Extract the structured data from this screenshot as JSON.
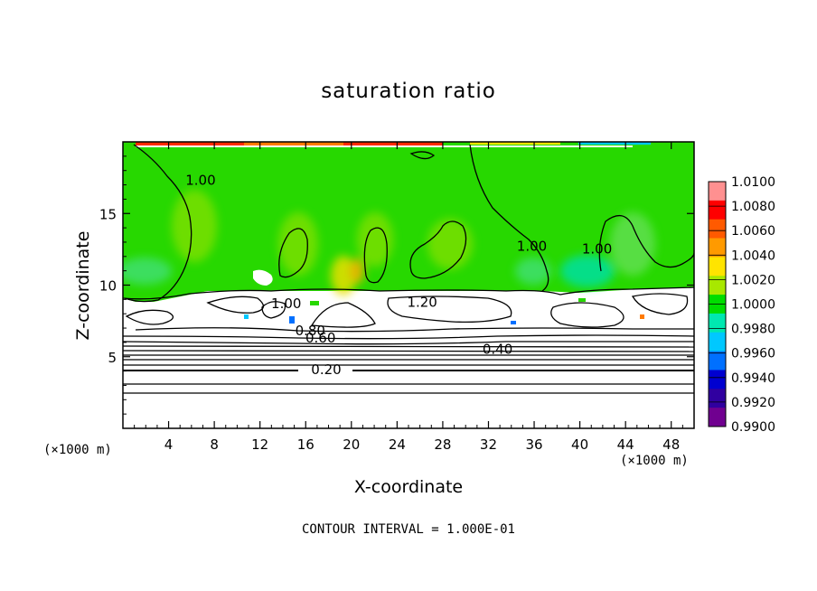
{
  "chart_data": {
    "type": "heatmap",
    "title": "saturation ratio",
    "xlabel": "X-coordinate",
    "ylabel": "Z-coordinate",
    "x_unit": "(×1000 m)",
    "z_unit": "(×1000 m)",
    "xlim": [
      0,
      50
    ],
    "ylim": [
      0,
      20
    ],
    "x_ticks": [
      4,
      8,
      12,
      16,
      20,
      24,
      28,
      32,
      36,
      40,
      44,
      48
    ],
    "y_ticks": [
      5,
      10,
      15
    ],
    "colorbar": {
      "min": 0.99,
      "max": 1.01,
      "levels": [
        "1.0100",
        "1.0080",
        "1.0060",
        "1.0040",
        "1.0020",
        "1.0000",
        "0.9980",
        "0.9960",
        "0.9940",
        "0.9920",
        "0.9900"
      ],
      "colors": [
        "#ff9090",
        "#ff0000",
        "#ff5a00",
        "#ff9a00",
        "#ffe400",
        "#a8e800",
        "#00dd00",
        "#00e8b0",
        "#00c8ff",
        "#0070ff",
        "#0000d0",
        "#3000a0",
        "#700090"
      ]
    },
    "contour_labels": [
      {
        "text": "1.00",
        "x": 6.8,
        "y": 17.0
      },
      {
        "text": "1.00",
        "x": 35.8,
        "y": 12.4
      },
      {
        "text": "1.00",
        "x": 41.5,
        "y": 12.2
      },
      {
        "text": "1.00",
        "x": 14.3,
        "y": 8.4
      },
      {
        "text": "1.20",
        "x": 26.2,
        "y": 8.5
      },
      {
        "text": "0.80",
        "x": 16.4,
        "y": 6.5
      },
      {
        "text": "0.60",
        "x": 17.3,
        "y": 6.0
      },
      {
        "text": "0.40",
        "x": 32.8,
        "y": 5.2
      },
      {
        "text": "0.20",
        "x": 17.8,
        "y": 3.8
      }
    ],
    "contour_interval": "1.000E-01",
    "footnote": "CONTOUR INTERVAL = 1.000E-01"
  }
}
